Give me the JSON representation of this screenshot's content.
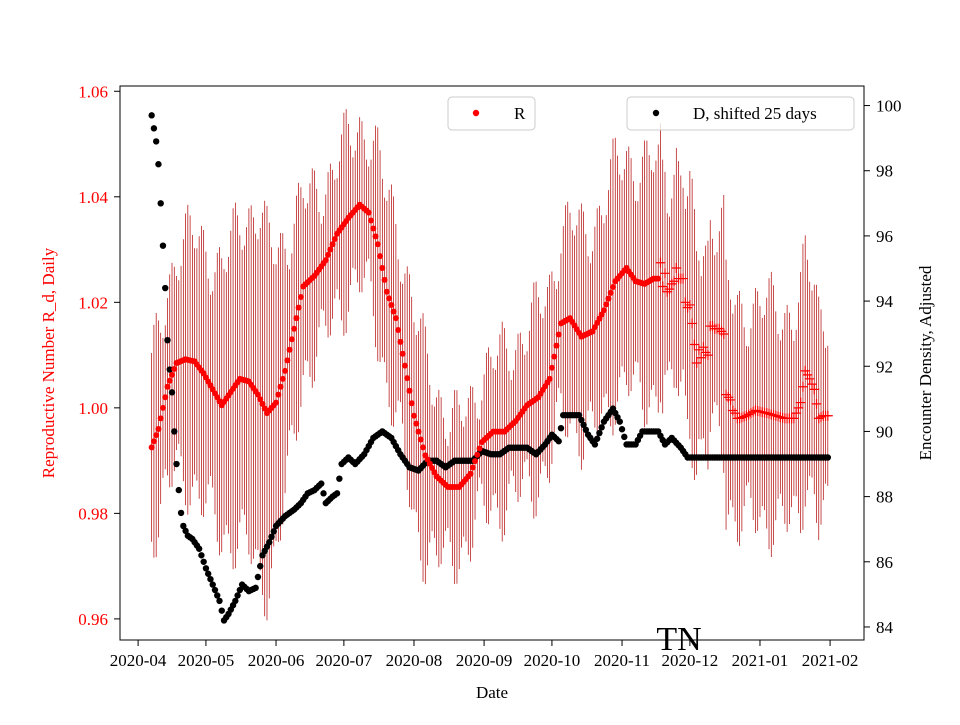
{
  "chart_data": {
    "type": "scatter",
    "title": "TN",
    "xlabel": "Date",
    "ylabel_left": "Reproductive Number R_d, Daily",
    "ylabel_right": "Encounter Density, Adjusted",
    "x_range": [
      "2020-03-24",
      "2021-02-16"
    ],
    "ylim_left": [
      0.956,
      1.061
    ],
    "ylim_right": [
      83.6,
      100.6
    ],
    "x_ticks": [
      "2020-04",
      "2020-05",
      "2020-06",
      "2020-07",
      "2020-08",
      "2020-09",
      "2020-10",
      "2020-11",
      "2020-12",
      "2021-01",
      "2021-02"
    ],
    "y_ticks_left": [
      "0.96",
      "0.98",
      "1.00",
      "1.02",
      "1.04",
      "1.06"
    ],
    "y_ticks_right": [
      "84",
      "86",
      "88",
      "90",
      "92",
      "94",
      "96",
      "98",
      "100"
    ],
    "colors": {
      "R": "#ff0000",
      "R_error": "#b00000",
      "D": "#000000",
      "axis": "#000000"
    },
    "series": [
      {
        "name": "R",
        "legend": "R",
        "axis": "left",
        "marker": "dot",
        "anchors": [
          [
            "2020-04-07",
            0.9925
          ],
          [
            "2020-04-10",
            0.996
          ],
          [
            "2020-04-14",
            1.004
          ],
          [
            "2020-04-18",
            1.0085
          ],
          [
            "2020-04-22",
            1.0092
          ],
          [
            "2020-04-26",
            1.0088
          ],
          [
            "2020-04-30",
            1.0065
          ],
          [
            "2020-05-04",
            1.0035
          ],
          [
            "2020-05-08",
            1.0005
          ],
          [
            "2020-05-12",
            1.003
          ],
          [
            "2020-05-16",
            1.0055
          ],
          [
            "2020-05-20",
            1.005
          ],
          [
            "2020-05-24",
            1.0025
          ],
          [
            "2020-05-28",
            0.999
          ],
          [
            "2020-06-01",
            1.001
          ],
          [
            "2020-06-05",
            1.007
          ],
          [
            "2020-06-09",
            1.015
          ],
          [
            "2020-06-13",
            1.023
          ],
          [
            "2020-06-18",
            1.025
          ],
          [
            "2020-06-23",
            1.028
          ],
          [
            "2020-06-28",
            1.033
          ],
          [
            "2020-07-03",
            1.036
          ],
          [
            "2020-07-08",
            1.0385
          ],
          [
            "2020-07-12",
            1.037
          ],
          [
            "2020-07-16",
            1.031
          ],
          [
            "2020-07-20",
            1.022
          ],
          [
            "2020-07-24",
            1.017
          ],
          [
            "2020-07-28",
            1.008
          ],
          [
            "2020-08-01",
            0.9985
          ],
          [
            "2020-08-06",
            0.991
          ],
          [
            "2020-08-11",
            0.987
          ],
          [
            "2020-08-16",
            0.985
          ],
          [
            "2020-08-21",
            0.985
          ],
          [
            "2020-08-26",
            0.9875
          ],
          [
            "2020-08-31",
            0.9935
          ],
          [
            "2020-09-05",
            0.9955
          ],
          [
            "2020-09-10",
            0.9955
          ],
          [
            "2020-09-15",
            0.9975
          ],
          [
            "2020-09-20",
            1.0005
          ],
          [
            "2020-09-25",
            1.002
          ],
          [
            "2020-09-30",
            1.0055
          ],
          [
            "2020-10-05",
            1.016
          ],
          [
            "2020-10-09",
            1.017
          ],
          [
            "2020-10-14",
            1.0135
          ],
          [
            "2020-10-19",
            1.0145
          ],
          [
            "2020-10-24",
            1.0185
          ],
          [
            "2020-10-29",
            1.024
          ],
          [
            "2020-11-03",
            1.0265
          ],
          [
            "2020-11-07",
            1.024
          ],
          [
            "2020-11-11",
            1.0235
          ],
          [
            "2020-11-15",
            1.0245
          ],
          [
            "2020-11-17",
            1.0245
          ]
        ],
        "error_band": [
          [
            "2020-04-07",
            0.015
          ],
          [
            "2020-04-20",
            0.022
          ],
          [
            "2020-05-10",
            0.026
          ],
          [
            "2020-05-25",
            0.035
          ],
          [
            "2020-06-15",
            0.015
          ],
          [
            "2020-07-05",
            0.014
          ],
          [
            "2020-08-01",
            0.02
          ],
          [
            "2020-08-20",
            0.012
          ],
          [
            "2020-09-20",
            0.015
          ],
          [
            "2020-10-20",
            0.02
          ],
          [
            "2020-11-10",
            0.022
          ],
          [
            "2020-11-30",
            0.02
          ],
          [
            "2020-12-15",
            0.02
          ],
          [
            "2021-01-31",
            0.02
          ]
        ]
      },
      {
        "name": "R_forecast",
        "legend": "",
        "axis": "left",
        "marker": "plus",
        "anchors": [
          [
            "2020-11-18",
            1.0275
          ],
          [
            "2020-11-19",
            1.023
          ],
          [
            "2020-11-20",
            1.0255
          ],
          [
            "2020-11-21",
            1.022
          ],
          [
            "2020-11-22",
            1.0225
          ],
          [
            "2020-11-23",
            1.0235
          ],
          [
            "2020-11-24",
            1.024
          ],
          [
            "2020-11-25",
            1.0265
          ],
          [
            "2020-11-26",
            1.0245
          ],
          [
            "2020-11-27",
            1.0245
          ],
          [
            "2020-11-28",
            1.0245
          ],
          [
            "2020-11-29",
            1.02
          ],
          [
            "2020-11-30",
            1.019
          ],
          [
            "2020-12-01",
            1.0195
          ],
          [
            "2020-12-02",
            1.016
          ],
          [
            "2020-12-03",
            1.012
          ],
          [
            "2020-12-04",
            1.0085
          ],
          [
            "2020-12-05",
            1.011
          ],
          [
            "2020-12-06",
            1.0095
          ],
          [
            "2020-12-07",
            1.0115
          ],
          [
            "2020-12-08",
            1.0105
          ],
          [
            "2020-12-09",
            1.01
          ],
          [
            "2020-12-10",
            1.0155
          ],
          [
            "2020-12-11",
            1.0155
          ],
          [
            "2020-12-12",
            1.015
          ],
          [
            "2020-12-13",
            1.015
          ],
          [
            "2020-12-14",
            1.015
          ],
          [
            "2020-12-15",
            1.0145
          ],
          [
            "2020-12-16",
            1.014
          ],
          [
            "2020-12-17",
            1.0025
          ],
          [
            "2020-12-18",
            1.002
          ],
          [
            "2020-12-19",
            1.0015
          ],
          [
            "2020-12-20",
            0.9995
          ],
          [
            "2020-12-21",
            0.999
          ],
          [
            "2020-12-22",
            0.998
          ],
          [
            "2020-12-23",
            0.998
          ],
          [
            "2020-12-26",
            0.9985
          ],
          [
            "2020-12-30",
            0.9995
          ],
          [
            "2021-01-04",
            0.999
          ],
          [
            "2021-01-08",
            0.9985
          ],
          [
            "2021-01-12",
            0.998
          ],
          [
            "2021-01-16",
            0.998
          ],
          [
            "2021-01-19",
            1.001
          ],
          [
            "2021-01-21",
            1.007
          ],
          [
            "2021-01-23",
            1.0055
          ],
          [
            "2021-01-25",
            1.0035
          ],
          [
            "2021-01-27",
            0.998
          ],
          [
            "2021-01-29",
            0.9985
          ],
          [
            "2021-01-31",
            0.9985
          ]
        ]
      },
      {
        "name": "D",
        "legend": "D, shifted 25 days",
        "axis": "right",
        "marker": "dot",
        "anchors": [
          [
            "2020-04-07",
            99.7
          ],
          [
            "2020-04-08",
            99.3
          ],
          [
            "2020-04-09",
            98.9
          ],
          [
            "2020-04-10",
            98.2
          ],
          [
            "2020-04-11",
            97.0
          ],
          [
            "2020-04-12",
            95.7
          ],
          [
            "2020-04-13",
            94.4
          ],
          [
            "2020-04-14",
            92.8
          ],
          [
            "2020-04-15",
            91.9
          ],
          [
            "2020-04-16",
            91.2
          ],
          [
            "2020-04-17",
            90.0
          ],
          [
            "2020-04-18",
            89.0
          ],
          [
            "2020-04-19",
            88.2
          ],
          [
            "2020-04-20",
            87.5
          ],
          [
            "2020-04-21",
            87.1
          ],
          [
            "2020-04-23",
            86.8
          ],
          [
            "2020-04-25",
            86.7
          ],
          [
            "2020-04-28",
            86.4
          ],
          [
            "2020-05-01",
            85.8
          ],
          [
            "2020-05-04",
            85.3
          ],
          [
            "2020-05-07",
            84.8
          ],
          [
            "2020-05-09",
            84.2
          ],
          [
            "2020-05-11",
            84.4
          ],
          [
            "2020-05-14",
            84.8
          ],
          [
            "2020-05-17",
            85.3
          ],
          [
            "2020-05-20",
            85.1
          ],
          [
            "2020-05-23",
            85.2
          ],
          [
            "2020-05-26",
            86.2
          ],
          [
            "2020-05-29",
            86.6
          ],
          [
            "2020-06-01",
            87.1
          ],
          [
            "2020-06-05",
            87.4
          ],
          [
            "2020-06-09",
            87.6
          ],
          [
            "2020-06-12",
            87.8
          ],
          [
            "2020-06-15",
            88.1
          ],
          [
            "2020-06-18",
            88.2
          ],
          [
            "2020-06-21",
            88.4
          ],
          [
            "2020-06-23",
            87.8
          ],
          [
            "2020-06-26",
            88.0
          ],
          [
            "2020-06-28",
            88.1
          ],
          [
            "2020-06-30",
            89.0
          ],
          [
            "2020-07-03",
            89.2
          ],
          [
            "2020-07-06",
            89.0
          ],
          [
            "2020-07-10",
            89.3
          ],
          [
            "2020-07-14",
            89.8
          ],
          [
            "2020-07-18",
            90.0
          ],
          [
            "2020-07-22",
            89.8
          ],
          [
            "2020-07-26",
            89.3
          ],
          [
            "2020-07-30",
            88.9
          ],
          [
            "2020-08-03",
            88.8
          ],
          [
            "2020-08-07",
            89.1
          ],
          [
            "2020-08-11",
            89.1
          ],
          [
            "2020-08-15",
            88.9
          ],
          [
            "2020-08-19",
            89.1
          ],
          [
            "2020-08-23",
            89.1
          ],
          [
            "2020-08-27",
            89.1
          ],
          [
            "2020-08-31",
            89.4
          ],
          [
            "2020-09-04",
            89.3
          ],
          [
            "2020-09-08",
            89.3
          ],
          [
            "2020-09-12",
            89.5
          ],
          [
            "2020-09-16",
            89.5
          ],
          [
            "2020-09-20",
            89.5
          ],
          [
            "2020-09-24",
            89.3
          ],
          [
            "2020-09-28",
            89.6
          ],
          [
            "2020-10-01",
            89.9
          ],
          [
            "2020-10-04",
            89.7
          ],
          [
            "2020-10-06",
            90.5
          ],
          [
            "2020-10-09",
            90.5
          ],
          [
            "2020-10-13",
            90.5
          ],
          [
            "2020-10-17",
            89.9
          ],
          [
            "2020-10-20",
            89.6
          ],
          [
            "2020-10-24",
            90.3
          ],
          [
            "2020-10-28",
            90.7
          ],
          [
            "2020-10-31",
            90.3
          ],
          [
            "2020-11-03",
            89.6
          ],
          [
            "2020-11-07",
            89.6
          ],
          [
            "2020-11-10",
            90.0
          ],
          [
            "2020-11-13",
            90.0
          ],
          [
            "2020-11-17",
            90.0
          ],
          [
            "2020-11-20",
            89.6
          ],
          [
            "2020-11-23",
            89.8
          ],
          [
            "2020-11-27",
            89.5
          ],
          [
            "2020-11-30",
            89.2
          ],
          [
            "2020-12-05",
            89.2
          ],
          [
            "2021-01-31",
            89.2
          ]
        ]
      }
    ],
    "legend": [
      {
        "label": "R",
        "series": "R",
        "placement": "top-center"
      },
      {
        "label": "D, shifted 25 days",
        "series": "D",
        "placement": "top-right"
      }
    ]
  }
}
